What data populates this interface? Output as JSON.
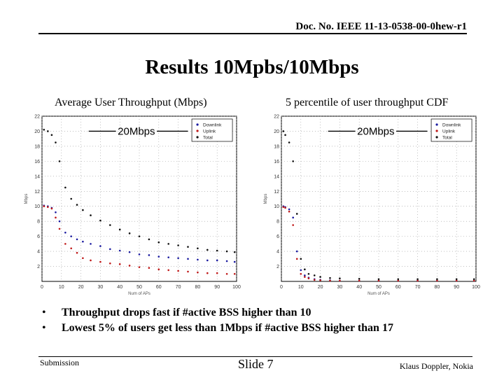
{
  "header": {
    "doc_number": "Doc. No. IEEE 11-13-0538-00-0hew-r1"
  },
  "slide": {
    "title": "Results 10Mpbs/10Mbps",
    "left_caption": "Average User Throughput (Mbps)",
    "right_caption": "5 percentile of user throughput CDF"
  },
  "bullets": [
    "Throughput drops fast if #active BSS higher than 10",
    "Lowest 5% of users get less than 1Mbps if #active BSS higher than 17"
  ],
  "footer": {
    "left": "Submission",
    "center": "Slide 7",
    "right": "Klaus Doppler, Nokia"
  },
  "colors": {
    "downlink": "#1a1aa0",
    "uplink": "#c01818",
    "total": "#111111"
  },
  "chart_data": [
    {
      "type": "scatter",
      "title": "Average User Throughput (Mbps)",
      "xlabel": "Num of APs",
      "ylabel": "Mbps",
      "xlim": [
        0,
        100
      ],
      "ylim": [
        0,
        22
      ],
      "xticks": [
        "0",
        "10",
        "20",
        "30",
        "40",
        "50",
        "60",
        "70",
        "80",
        "90",
        "100"
      ],
      "yticks": [
        "2",
        "4",
        "6",
        "8",
        "10",
        "12",
        "14",
        "16",
        "18",
        "20",
        "22"
      ],
      "annotation": "20Mbps",
      "legend": [
        "Downlink",
        "Uplink",
        "Total"
      ],
      "x": [
        1,
        3,
        5,
        7,
        9,
        12,
        15,
        18,
        21,
        25,
        30,
        35,
        40,
        45,
        50,
        55,
        60,
        65,
        70,
        75,
        80,
        85,
        90,
        95,
        99
      ],
      "series": [
        {
          "name": "Downlink",
          "values": [
            10.1,
            10.0,
            9.8,
            9.2,
            8.0,
            6.5,
            6.0,
            5.6,
            5.3,
            5.0,
            4.7,
            4.3,
            4.1,
            3.9,
            3.6,
            3.5,
            3.3,
            3.2,
            3.1,
            3.0,
            2.9,
            2.8,
            2.8,
            2.7,
            2.6
          ]
        },
        {
          "name": "Uplink",
          "values": [
            10.0,
            9.9,
            9.7,
            8.5,
            7.0,
            5.0,
            4.4,
            3.8,
            3.1,
            2.8,
            2.6,
            2.4,
            2.3,
            2.1,
            1.9,
            1.8,
            1.6,
            1.5,
            1.4,
            1.3,
            1.2,
            1.1,
            1.1,
            1.0,
            1.0
          ]
        },
        {
          "name": "Total",
          "values": [
            20.2,
            20.0,
            19.5,
            18.5,
            16.0,
            12.5,
            11.0,
            10.2,
            9.5,
            8.8,
            8.1,
            7.5,
            6.9,
            6.4,
            6.0,
            5.6,
            5.2,
            5.0,
            4.8,
            4.6,
            4.4,
            4.2,
            4.1,
            4.0,
            3.9
          ]
        }
      ]
    },
    {
      "type": "scatter",
      "title": "5 percentile of user throughput CDF",
      "xlabel": "Num of APs",
      "ylabel": "Mbps",
      "xlim": [
        0,
        100
      ],
      "ylim": [
        0,
        22
      ],
      "xticks": [
        "0",
        "10",
        "20",
        "30",
        "40",
        "50",
        "60",
        "70",
        "80",
        "90",
        "100"
      ],
      "yticks": [
        "2",
        "4",
        "6",
        "8",
        "10",
        "12",
        "14",
        "16",
        "18",
        "20",
        "22"
      ],
      "annotation": "20Mbps",
      "legend": [
        "Downlink",
        "Uplink",
        "Total"
      ],
      "x": [
        1,
        2,
        4,
        6,
        8,
        10,
        12,
        14,
        17,
        20,
        25,
        30,
        40,
        50,
        60,
        70,
        80,
        90,
        99
      ],
      "series": [
        {
          "name": "Downlink",
          "values": [
            10.0,
            9.9,
            9.6,
            8.5,
            4.0,
            1.5,
            0.8,
            0.5,
            0.3,
            0.2,
            0.15,
            0.1,
            0.1,
            0.1,
            0.1,
            0.1,
            0.1,
            0.1,
            0.1
          ]
        },
        {
          "name": "Uplink",
          "values": [
            9.9,
            9.8,
            9.3,
            7.5,
            3.0,
            1.0,
            0.6,
            0.4,
            0.2,
            0.15,
            0.1,
            0.1,
            0.1,
            0.1,
            0.1,
            0.1,
            0.1,
            0.1,
            0.1
          ]
        },
        {
          "name": "Total",
          "values": [
            20.0,
            19.5,
            18.5,
            16.0,
            9.0,
            3.0,
            1.6,
            1.0,
            0.8,
            0.6,
            0.45,
            0.4,
            0.35,
            0.3,
            0.3,
            0.3,
            0.3,
            0.3,
            0.3
          ]
        }
      ]
    }
  ]
}
